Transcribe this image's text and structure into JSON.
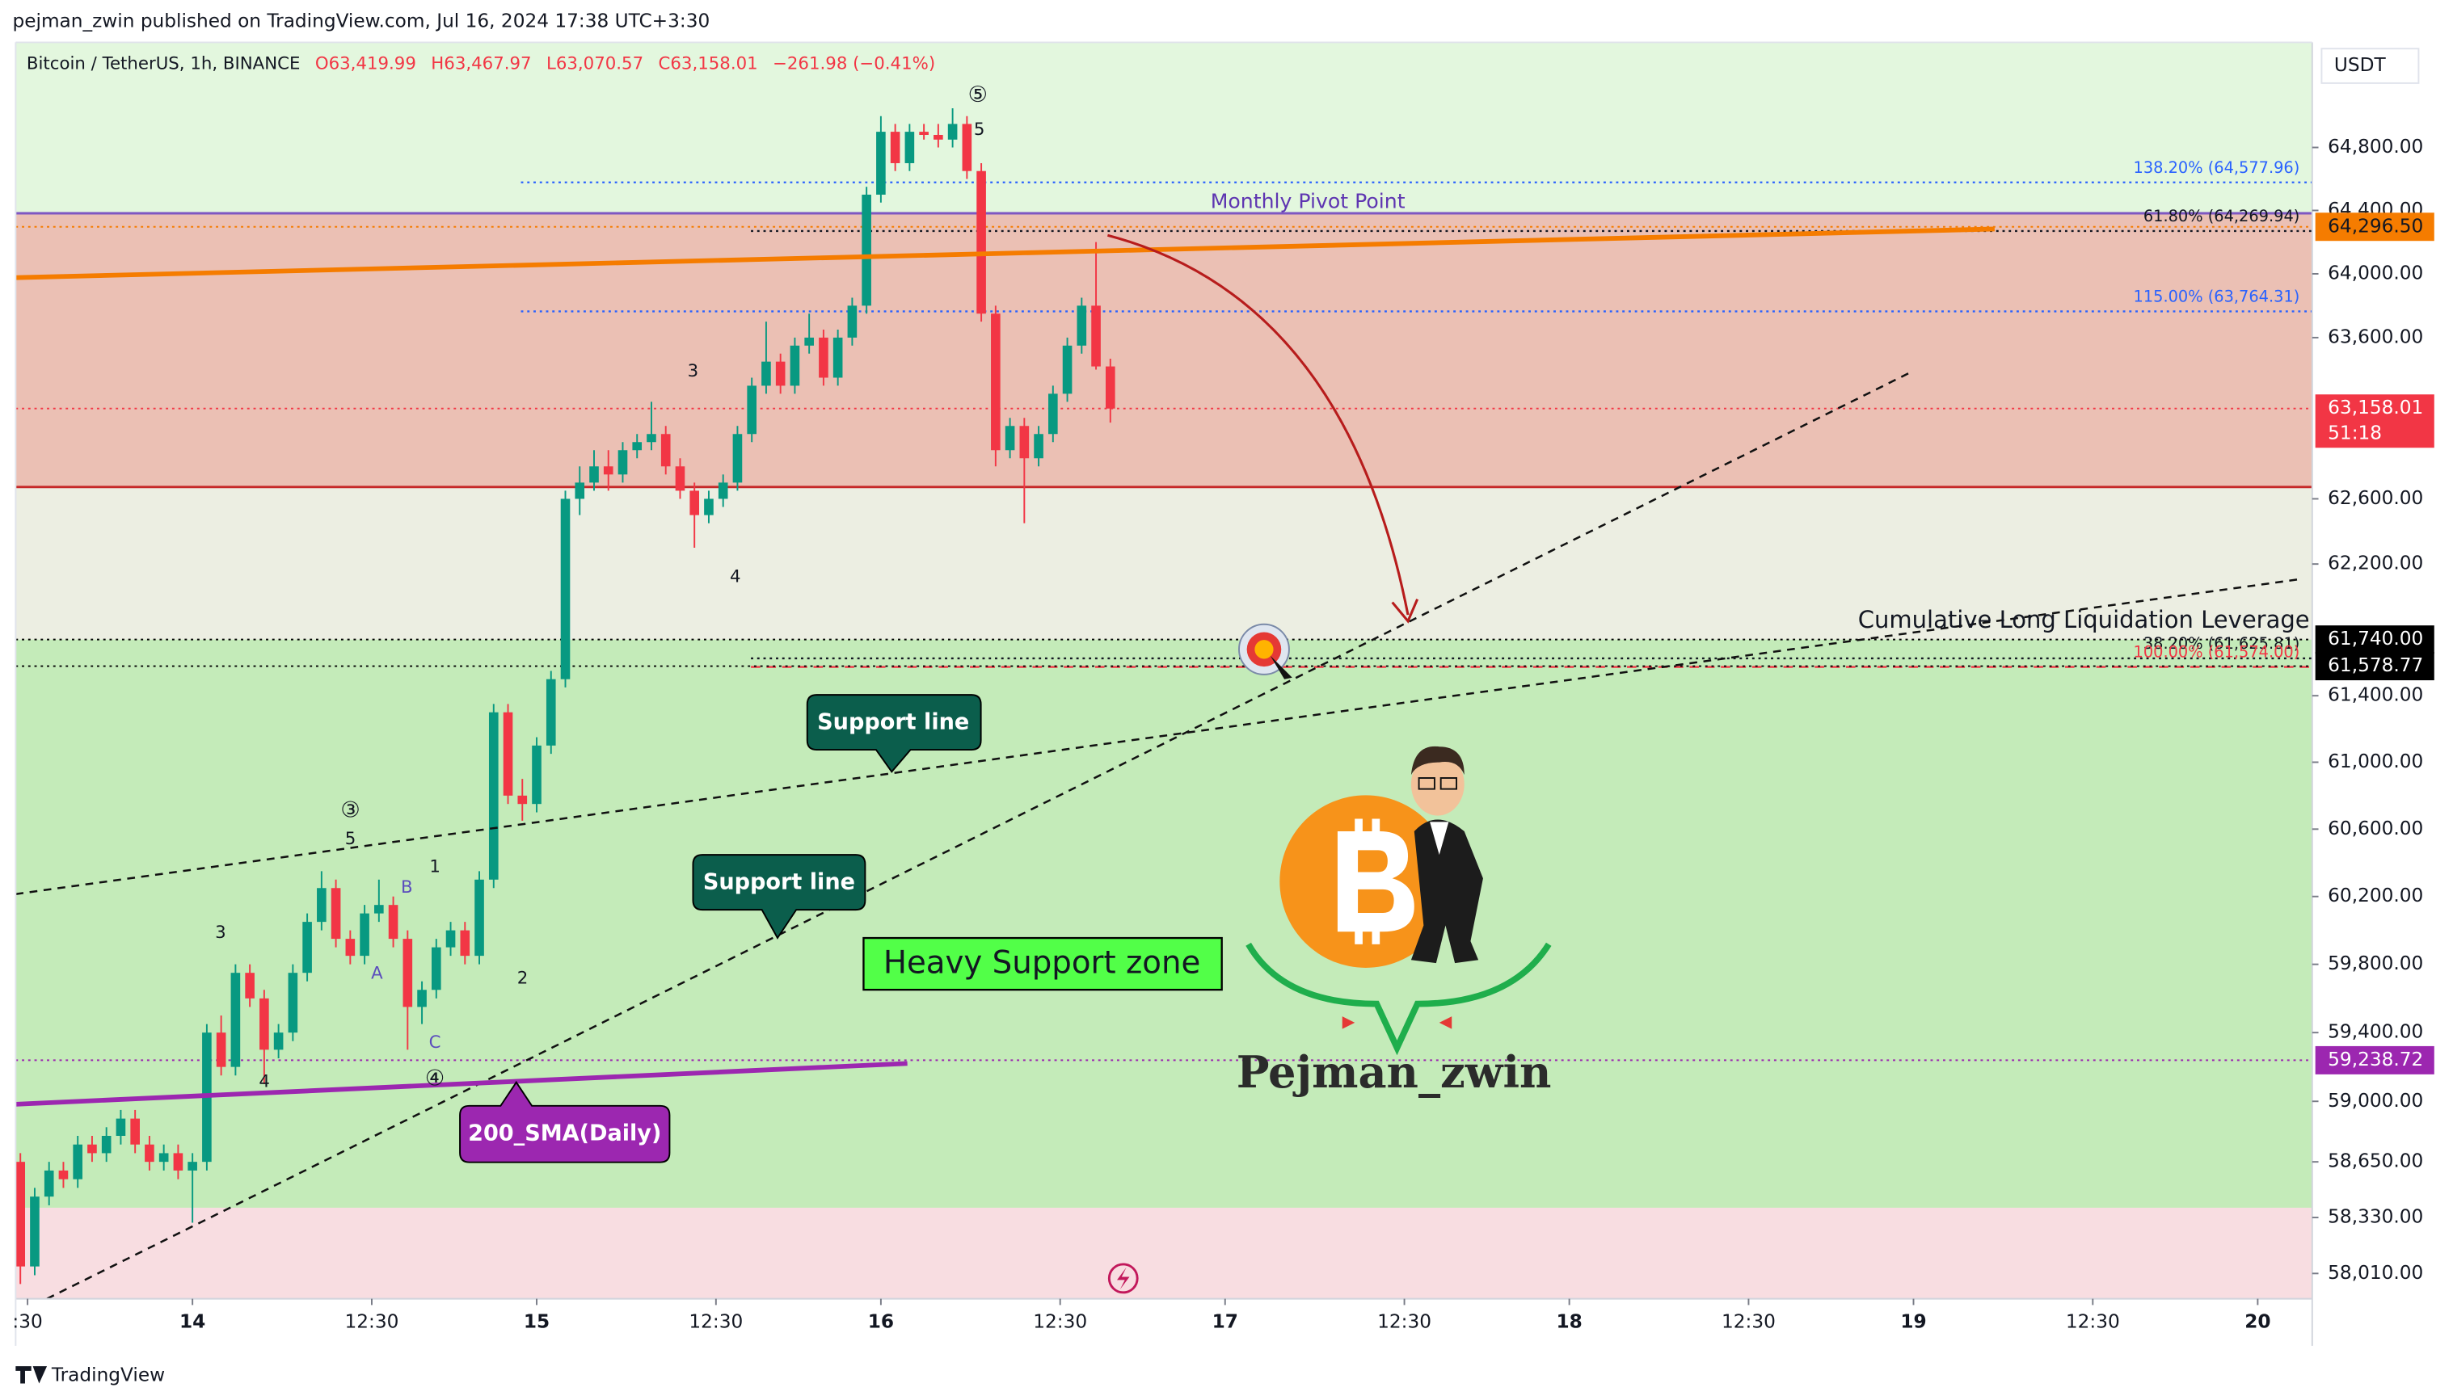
{
  "header": {
    "publisher": "pejman_zwin published on TradingView.com, Jul 16, 2024 17:38 UTC+3:30",
    "footer": "TradingView"
  },
  "chart_data": {
    "type": "candlestick",
    "title": "Bitcoin / TetherUS, 1h, BINANCE",
    "ohlc_legend": {
      "open": "O63,419.99",
      "high": "H63,467.97",
      "low": "L63,070.57",
      "close": "C63,158.01",
      "change": "−261.98 (−0.41%)"
    },
    "currency": "USDT",
    "up_color": "#089981",
    "down_color": "#f23645",
    "log_y": true,
    "candles": [
      [
        58650,
        58700,
        57950,
        58050
      ],
      [
        58050,
        58500,
        58000,
        58450
      ],
      [
        58450,
        58650,
        58400,
        58600
      ],
      [
        58600,
        58650,
        58500,
        58550
      ],
      [
        58550,
        58800,
        58500,
        58750
      ],
      [
        58750,
        58800,
        58650,
        58700
      ],
      [
        58700,
        58850,
        58650,
        58800
      ],
      [
        58800,
        58950,
        58750,
        58900
      ],
      [
        58900,
        58950,
        58700,
        58750
      ],
      [
        58750,
        58800,
        58600,
        58650
      ],
      [
        58650,
        58750,
        58600,
        58700
      ],
      [
        58700,
        58750,
        58550,
        58600
      ],
      [
        58600,
        58700,
        58300,
        58650
      ],
      [
        58650,
        59450,
        58600,
        59400
      ],
      [
        59400,
        59500,
        59150,
        59200
      ],
      [
        59200,
        59800,
        59150,
        59750
      ],
      [
        59750,
        59800,
        59550,
        59600
      ],
      [
        59600,
        59650,
        59100,
        59300
      ],
      [
        59300,
        59450,
        59250,
        59400
      ],
      [
        59400,
        59800,
        59350,
        59750
      ],
      [
        59750,
        60100,
        59700,
        60050
      ],
      [
        60050,
        60350,
        60000,
        60250
      ],
      [
        60250,
        60300,
        59900,
        59950
      ],
      [
        59950,
        60000,
        59800,
        59850
      ],
      [
        59850,
        60150,
        59800,
        60100
      ],
      [
        60100,
        60300,
        60050,
        60150
      ],
      [
        60150,
        60200,
        59900,
        59950
      ],
      [
        59950,
        60000,
        59300,
        59550
      ],
      [
        59550,
        59700,
        59450,
        59650
      ],
      [
        59650,
        59950,
        59600,
        59900
      ],
      [
        59900,
        60050,
        59850,
        60000
      ],
      [
        60000,
        60050,
        59800,
        59850
      ],
      [
        59850,
        60350,
        59800,
        60300
      ],
      [
        60300,
        61350,
        60250,
        61300
      ],
      [
        61300,
        61350,
        60750,
        60800
      ],
      [
        60800,
        60900,
        60650,
        60750
      ],
      [
        60750,
        61150,
        60700,
        61100
      ],
      [
        61100,
        61550,
        61050,
        61500
      ],
      [
        61500,
        62650,
        61450,
        62600
      ],
      [
        62600,
        62800,
        62500,
        62700
      ],
      [
        62700,
        62900,
        62650,
        62800
      ],
      [
        62800,
        62900,
        62650,
        62750
      ],
      [
        62750,
        62950,
        62700,
        62900
      ],
      [
        62900,
        63000,
        62850,
        62950
      ],
      [
        62950,
        63200,
        62900,
        63000
      ],
      [
        63000,
        63050,
        62750,
        62800
      ],
      [
        62800,
        62850,
        62600,
        62650
      ],
      [
        62650,
        62700,
        62300,
        62500
      ],
      [
        62500,
        62650,
        62450,
        62600
      ],
      [
        62600,
        62750,
        62550,
        62700
      ],
      [
        62700,
        63050,
        62650,
        63000
      ],
      [
        63000,
        63350,
        62950,
        63300
      ],
      [
        63300,
        63700,
        63250,
        63450
      ],
      [
        63450,
        63500,
        63250,
        63300
      ],
      [
        63300,
        63600,
        63250,
        63550
      ],
      [
        63550,
        63750,
        63500,
        63600
      ],
      [
        63600,
        63650,
        63300,
        63350
      ],
      [
        63350,
        63650,
        63300,
        63600
      ],
      [
        63600,
        63850,
        63550,
        63800
      ],
      [
        63800,
        64550,
        63750,
        64500
      ],
      [
        64500,
        65000,
        64450,
        64900
      ],
      [
        64900,
        64950,
        64650,
        64700
      ],
      [
        64700,
        64950,
        64650,
        64900
      ],
      [
        64900,
        64950,
        64850,
        64880
      ],
      [
        64880,
        64950,
        64800,
        64850
      ],
      [
        64850,
        65050,
        64800,
        64950
      ],
      [
        64950,
        65000,
        64600,
        64650
      ],
      [
        64650,
        64700,
        63700,
        63750
      ],
      [
        63750,
        63800,
        62800,
        62900
      ],
      [
        62900,
        63100,
        62850,
        63050
      ],
      [
        63050,
        63100,
        62450,
        62850
      ],
      [
        62850,
        63050,
        62800,
        63000
      ],
      [
        63000,
        63300,
        62950,
        63250
      ],
      [
        63250,
        63600,
        63200,
        63550
      ],
      [
        63550,
        63850,
        63500,
        63800
      ],
      [
        63800,
        64200,
        63400,
        63419.99
      ],
      [
        63419.99,
        63467.97,
        63070.57,
        63158.01
      ]
    ],
    "xlim": [
      -0.33,
      159.8
    ],
    "xticks": [
      {
        "value": 0.5,
        "label": ":30"
      },
      {
        "value": 12,
        "label": "14"
      },
      {
        "value": 24.5,
        "label": "12:30"
      },
      {
        "value": 36,
        "label": "15"
      },
      {
        "value": 48.5,
        "label": "12:30"
      },
      {
        "value": 60,
        "label": "16"
      },
      {
        "value": 72.5,
        "label": "12:30"
      },
      {
        "value": 84,
        "label": "17"
      },
      {
        "value": 96.5,
        "label": "12:30"
      },
      {
        "value": 108,
        "label": "18"
      },
      {
        "value": 120.5,
        "label": "12:30"
      },
      {
        "value": 132,
        "label": "19"
      },
      {
        "value": 144.5,
        "label": "12:30"
      },
      {
        "value": 156,
        "label": "20"
      }
    ],
    "ylim": [
      57866,
      65473
    ],
    "yticks": [
      {
        "value": 64800,
        "label": "64,800.00"
      },
      {
        "value": 64400,
        "label": "64,400.00"
      },
      {
        "value": 64000,
        "label": "64,000.00"
      },
      {
        "value": 63600,
        "label": "63,600.00"
      },
      {
        "value": 62600,
        "label": "62,600.00"
      },
      {
        "value": 62200,
        "label": "62,200.00"
      },
      {
        "value": 61400,
        "label": "61,400.00"
      },
      {
        "value": 61000,
        "label": "61,000.00"
      },
      {
        "value": 60600,
        "label": "60,600.00"
      },
      {
        "value": 60200,
        "label": "60,200.00"
      },
      {
        "value": 59800,
        "label": "59,800.00"
      },
      {
        "value": 59400,
        "label": "59,400.00"
      },
      {
        "value": 59000,
        "label": "59,000.00"
      },
      {
        "value": 58650,
        "label": "58,650.00"
      },
      {
        "value": 58330,
        "label": "58,330.00"
      },
      {
        "value": 58010,
        "label": "58,010.00"
      }
    ],
    "zones": [
      {
        "lo": 64382,
        "hi": 65473,
        "color": "#e3f7de"
      },
      {
        "lo": 62673,
        "hi": 64382,
        "color": "#ebc0b4"
      },
      {
        "lo": 61740,
        "hi": 62673,
        "color": "#eceee2"
      },
      {
        "lo": 58386,
        "hi": 61740,
        "color": "#c4ebb9"
      },
      {
        "lo": 57866,
        "hi": 58386,
        "color": "#f8dde1"
      }
    ],
    "lines": [
      {
        "value": 64382,
        "color": "#7e57c2",
        "dash": "solid"
      },
      {
        "value": 62673,
        "color": "#c62828",
        "dash": "solid"
      }
    ],
    "levels": [
      {
        "value": 64577.96,
        "label": "138.20% (64,577.96)",
        "color": "#2962ff",
        "dash": "dotted"
      },
      {
        "value": 63764.31,
        "label": "115.00% (63,764.31)",
        "color": "#2962ff",
        "dash": "dotted"
      },
      {
        "value": 64269.94,
        "label": "61.80% (64,269.94)",
        "color": "#131722",
        "dash": "dotted"
      },
      {
        "value": 61625.81,
        "label": "38.20% (61,625.81)",
        "color": "#131722",
        "dash": "dotted"
      },
      {
        "value": 61574.0,
        "label": "100.00% (61,574.00)",
        "color": "#f23645",
        "dash": "dashed"
      }
    ],
    "price_labels": [
      {
        "value": 64296.5,
        "label": "64,296.50",
        "color": "#f57c00",
        "text_color": "#131722"
      },
      {
        "value": 63158.01,
        "label": "63,158.01",
        "sublabel": "51:18",
        "color": "#f23645",
        "text_color": "#ffffff"
      },
      {
        "value": 61740.0,
        "label": "61,740.00",
        "color": "#000000",
        "text_color": "#ffffff"
      },
      {
        "value": 61578.77,
        "label": "61,578.77",
        "color": "#000000",
        "text_color": "#ffffff"
      },
      {
        "value": 59238.72,
        "label": "59,238.72",
        "color": "#9c27b0",
        "text_color": "#ffffff"
      }
    ],
    "annotations": {
      "pivot": "Monthly Pivot Point",
      "liquidation": "Cumulative Long Liquidation Leverage",
      "support1": "Support line",
      "support2": "Support line",
      "zone": "Heavy Support zone",
      "sma": "200_SMA(Daily)",
      "author": "Pejman_zwin"
    },
    "wave_labels": [
      "⑤",
      "5",
      "3",
      "4",
      "③",
      "5",
      "1",
      "B",
      "A",
      "C",
      "3",
      "4",
      "2",
      "④"
    ]
  }
}
